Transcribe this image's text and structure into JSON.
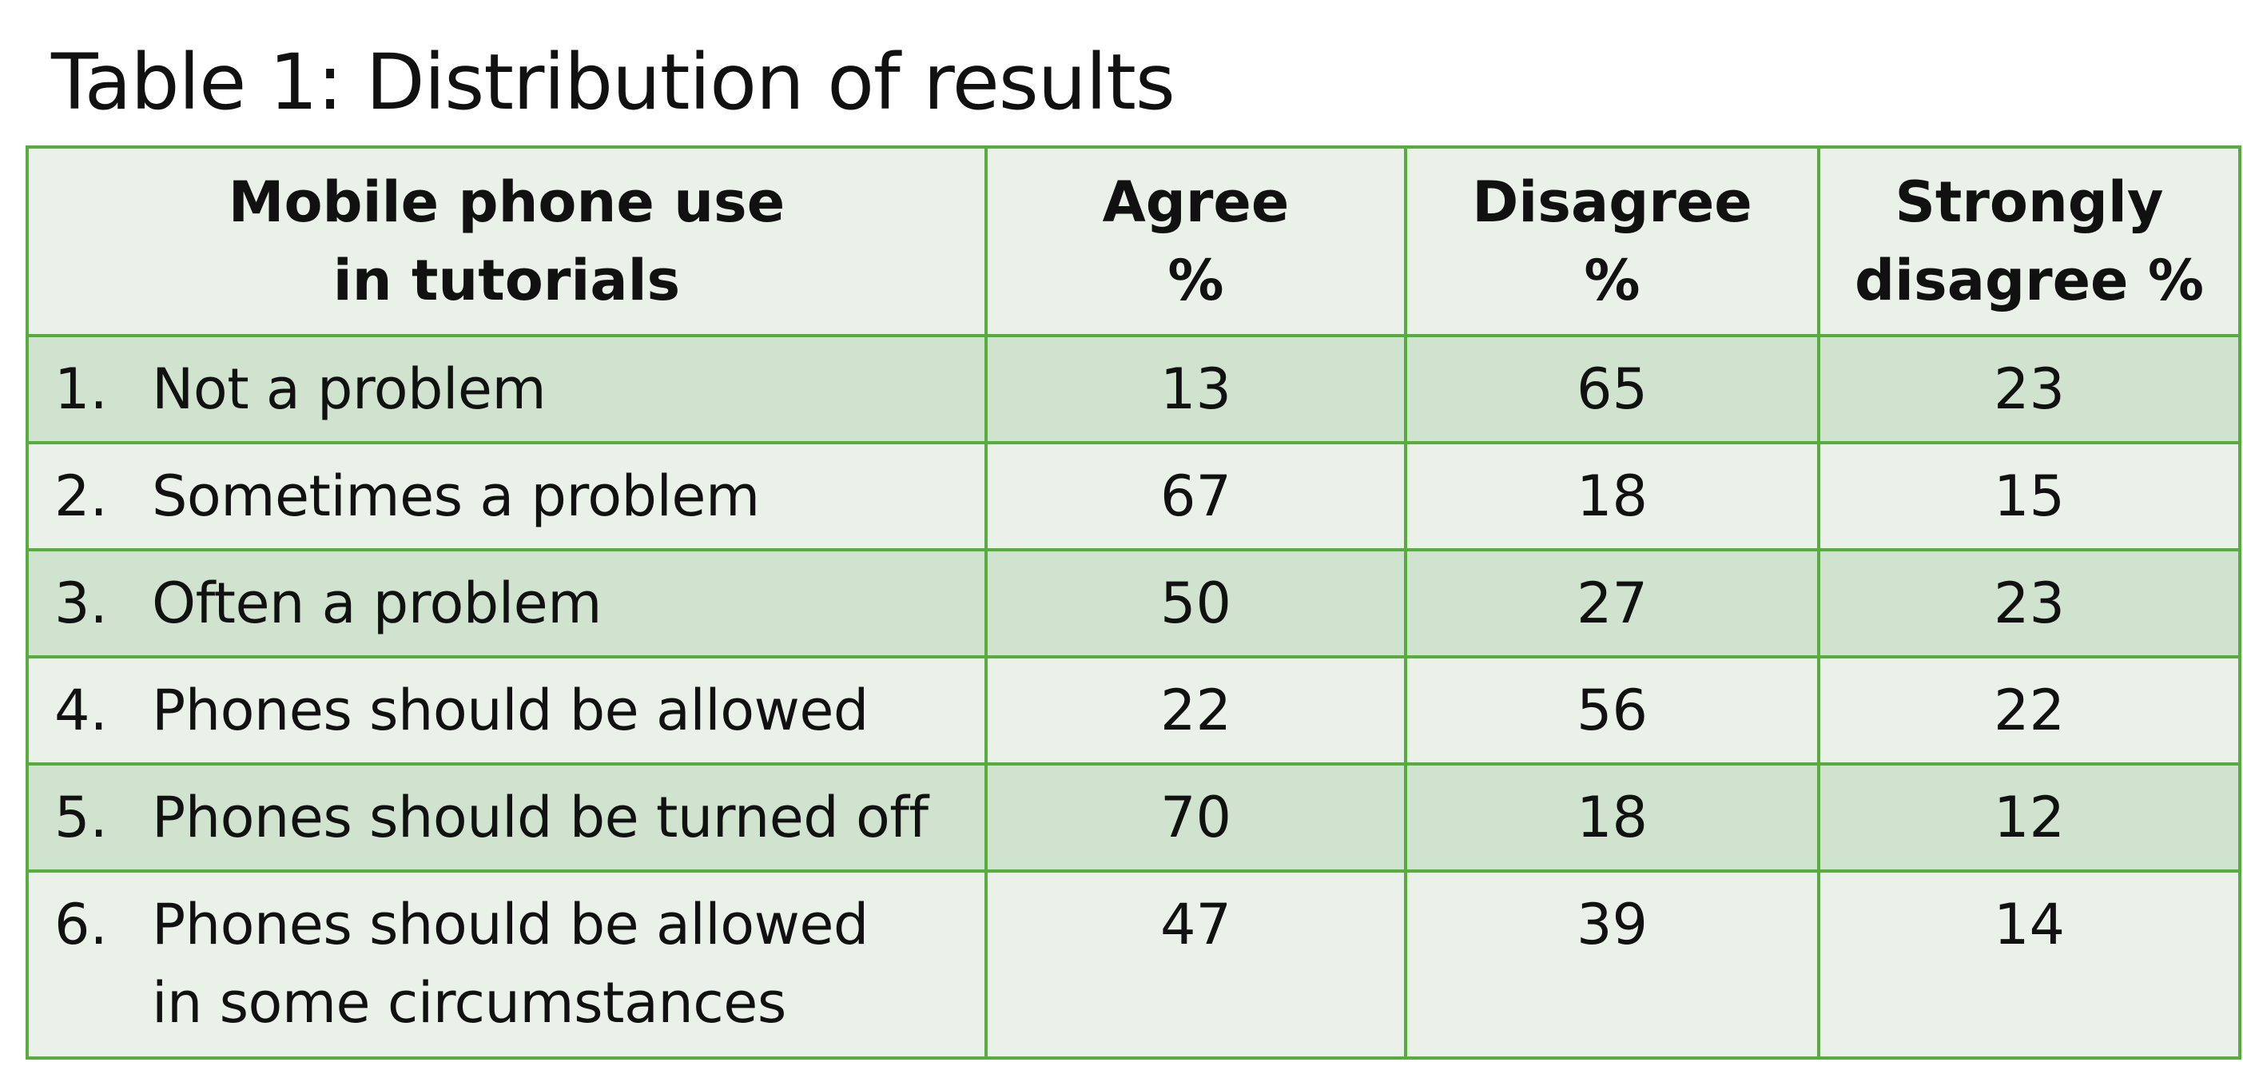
{
  "title": "Table 1: Distribution of results",
  "table": {
    "headers": {
      "item": [
        "Mobile phone use",
        "in tutorials"
      ],
      "agree": [
        "Agree",
        "%"
      ],
      "disagree": [
        "Disagree",
        "%"
      ],
      "strongly": [
        "Strongly",
        "disagree %"
      ]
    },
    "rows": [
      {
        "num": "1.",
        "label": "Not a problem",
        "agree": "13",
        "disagree": "65",
        "strongly": "23"
      },
      {
        "num": "2.",
        "label": "Sometimes a problem",
        "agree": "67",
        "disagree": "18",
        "strongly": "15"
      },
      {
        "num": "3.",
        "label": "Often a problem",
        "agree": "50",
        "disagree": "27",
        "strongly": "23"
      },
      {
        "num": "4.",
        "label": "Phones should be allowed",
        "agree": "22",
        "disagree": "56",
        "strongly": "22"
      },
      {
        "num": "5.",
        "label": "Phones should be turned off",
        "agree": "70",
        "disagree": "18",
        "strongly": "12"
      },
      {
        "num": "6.",
        "label_lines": [
          "Phones should be allowed",
          "in some circumstances"
        ],
        "agree": "47",
        "disagree": "39",
        "strongly": "14"
      }
    ]
  },
  "colors": {
    "border": "#56ad3d",
    "row_dark": "#d0e3ce",
    "row_light": "#e9f1e8"
  }
}
